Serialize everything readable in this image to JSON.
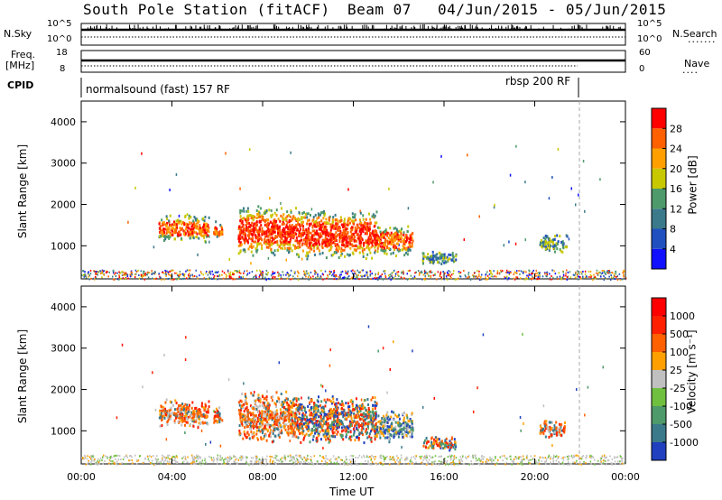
{
  "title": {
    "station": "South Pole Station (fitACF)",
    "beam": "Beam 07",
    "date_range": "04/Jun/2015 - 05/Jun/2015"
  },
  "strips": {
    "nsky": {
      "label": "N.Sky",
      "right_label": "N.Search",
      "left_ticks": [
        "10^5",
        "10^0"
      ],
      "right_ticks": [
        "10^5",
        "10^0"
      ]
    },
    "freq": {
      "label": "Freq.",
      "unit": "[MHz]",
      "right_label": "Nave",
      "left_ticks": [
        "18",
        "8"
      ],
      "right_ticks": [
        "60",
        "0"
      ]
    },
    "cpid": {
      "label": "CPID",
      "mode1": "normalsound (fast) 157 RF",
      "mode2": "rbsp 200 RF"
    }
  },
  "chart_data": [
    {
      "type": "heatmap",
      "ylabel": "Slant Range [km]",
      "xlabel": "Time UT",
      "ylim": [
        200,
        4500
      ],
      "yticks": [
        "1000",
        "2000",
        "3000",
        "4000"
      ],
      "xticks": [
        "00:00",
        "04:00",
        "08:00",
        "12:00",
        "16:00",
        "20:00",
        "00:00"
      ],
      "colorbar": {
        "label": "Power [dB]",
        "ticks": [
          "4",
          "8",
          "12",
          "16",
          "20",
          "24",
          "28"
        ],
        "colors": [
          "#1010ff",
          "#2050c0",
          "#3a7a8a",
          "#4e9a6a",
          "#c8c800",
          "#ffa000",
          "#ff6000",
          "#ff0000"
        ]
      },
      "echo_regions": [
        {
          "t_start": 3.4,
          "t_end": 5.6,
          "r_low": 1100,
          "r_high": 1800,
          "level": "medium"
        },
        {
          "t_start": 5.8,
          "t_end": 6.2,
          "r_low": 1150,
          "r_high": 1650,
          "level": "medium"
        },
        {
          "t_start": 6.9,
          "t_end": 9.5,
          "r_low": 750,
          "r_high": 2000,
          "level": "high"
        },
        {
          "t_start": 9.5,
          "t_end": 13.0,
          "r_low": 700,
          "r_high": 1900,
          "level": "high"
        },
        {
          "t_start": 13.0,
          "t_end": 14.6,
          "r_low": 750,
          "r_high": 1550,
          "level": "medium"
        },
        {
          "t_start": 15.0,
          "t_end": 16.5,
          "r_low": 550,
          "r_high": 900,
          "level": "low"
        },
        {
          "t_start": 20.2,
          "t_end": 21.4,
          "r_low": 850,
          "r_high": 1300,
          "level": "low"
        }
      ]
    },
    {
      "type": "heatmap",
      "ylabel": "Slant Range [km]",
      "xlabel": "Time UT",
      "ylim": [
        200,
        4500
      ],
      "yticks": [
        "1000",
        "2000",
        "3000",
        "4000"
      ],
      "xticks": [
        "00:00",
        "04:00",
        "08:00",
        "12:00",
        "16:00",
        "20:00",
        "00:00"
      ],
      "colorbar": {
        "label": "Velocity [m s⁻¹]",
        "ticks": [
          "1000",
          "500",
          "100",
          "25",
          "-25",
          "-100",
          "-500",
          "-1000"
        ],
        "colors": [
          "#2040c0",
          "#3a7a8a",
          "#4e9a6a",
          "#70c040",
          "#c0c0c0",
          "#ffa000",
          "#ff6000",
          "#ff2000",
          "#ff0000"
        ]
      },
      "echo_regions": [
        {
          "t_start": 3.4,
          "t_end": 5.6,
          "r_low": 1100,
          "r_high": 1800,
          "level": "neg"
        },
        {
          "t_start": 5.8,
          "t_end": 6.2,
          "r_low": 1150,
          "r_high": 1650,
          "level": "neg"
        },
        {
          "t_start": 6.9,
          "t_end": 9.5,
          "r_low": 750,
          "r_high": 2000,
          "level": "neg"
        },
        {
          "t_start": 9.5,
          "t_end": 13.0,
          "r_low": 700,
          "r_high": 1900,
          "level": "mix"
        },
        {
          "t_start": 13.0,
          "t_end": 14.6,
          "r_low": 750,
          "r_high": 1550,
          "level": "pos"
        },
        {
          "t_start": 15.0,
          "t_end": 16.5,
          "r_low": 550,
          "r_high": 900,
          "level": "mix"
        },
        {
          "t_start": 20.2,
          "t_end": 21.4,
          "r_low": 850,
          "r_high": 1300,
          "level": "neg"
        }
      ]
    }
  ]
}
